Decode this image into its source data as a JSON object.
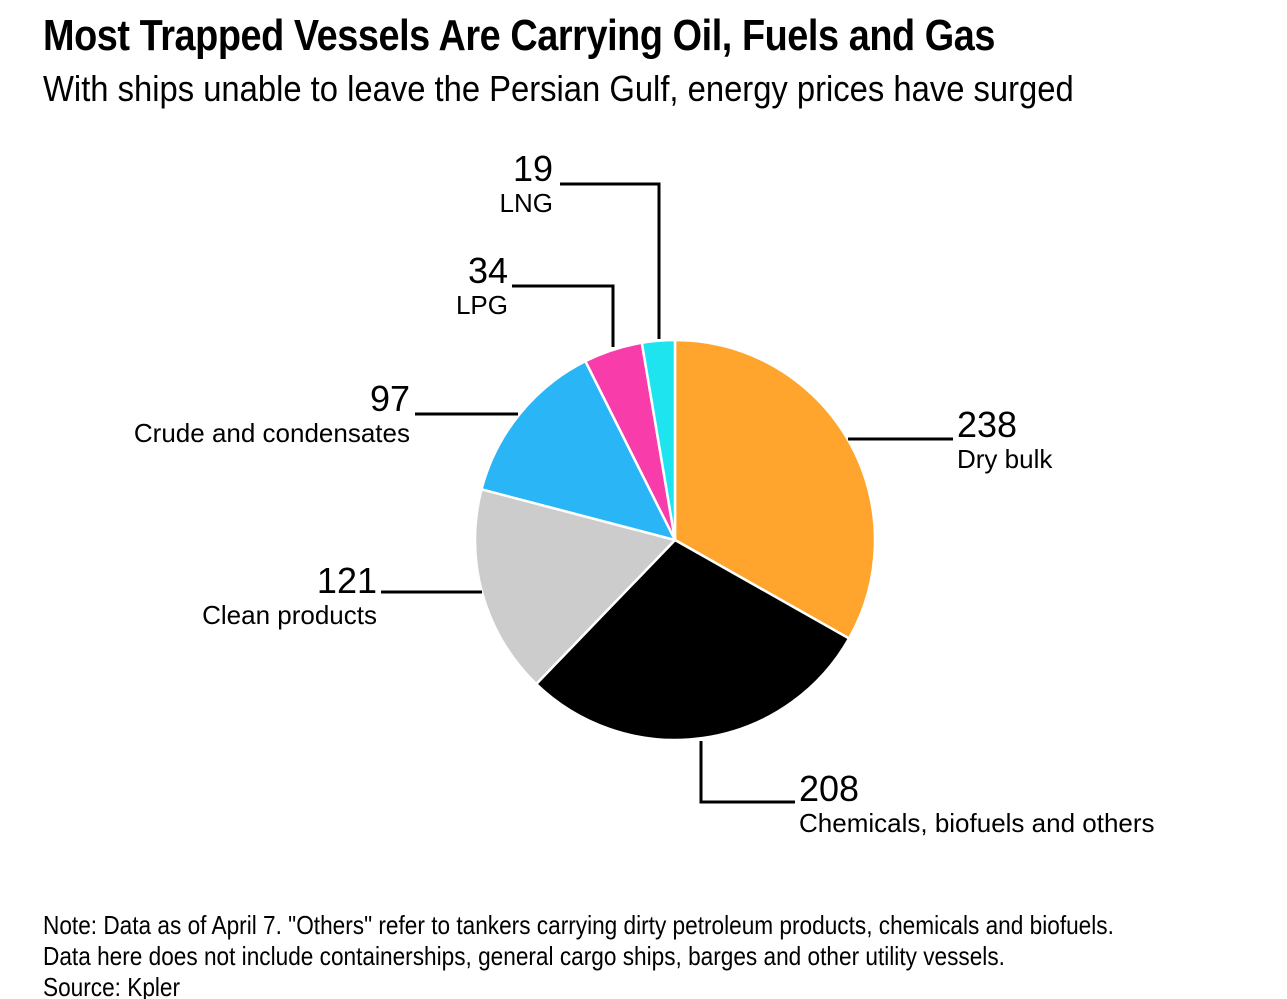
{
  "header": {
    "title": "Most Trapped Vessels Are Carrying Oil, Fuels and Gas",
    "subtitle": "With ships unable to leave the Persian Gulf, energy prices have surged"
  },
  "chart_data": {
    "type": "pie",
    "title": "Most Trapped Vessels Are Carrying Oil, Fuels and Gas",
    "subtitle": "With ships unable to leave the Persian Gulf, energy prices have surged",
    "start_angle_deg": 0,
    "direction": "clockwise",
    "legend_position": "outside-labels-with-leader-lines",
    "slices": [
      {
        "label": "Dry bulk",
        "value": 238,
        "color": "#FFA42C"
      },
      {
        "label": "Chemicals, biofuels and others",
        "value": 208,
        "color": "#000000"
      },
      {
        "label": "Clean products",
        "value": 121,
        "color": "#CCCCCC"
      },
      {
        "label": "Crude and condensates",
        "value": 97,
        "color": "#29B5F6"
      },
      {
        "label": "LPG",
        "value": 34,
        "color": "#F83CA9"
      },
      {
        "label": "LNG",
        "value": 19,
        "color": "#1EE4EF"
      }
    ]
  },
  "footer": {
    "note_line1": "Note: Data as of April 7. \"Others\" refer to tankers carrying dirty petroleum products, chemicals and biofuels.",
    "note_line2": "Data here does not include containerships, general cargo ships, barges and other utility vessels.",
    "source": "Source: Kpler"
  }
}
